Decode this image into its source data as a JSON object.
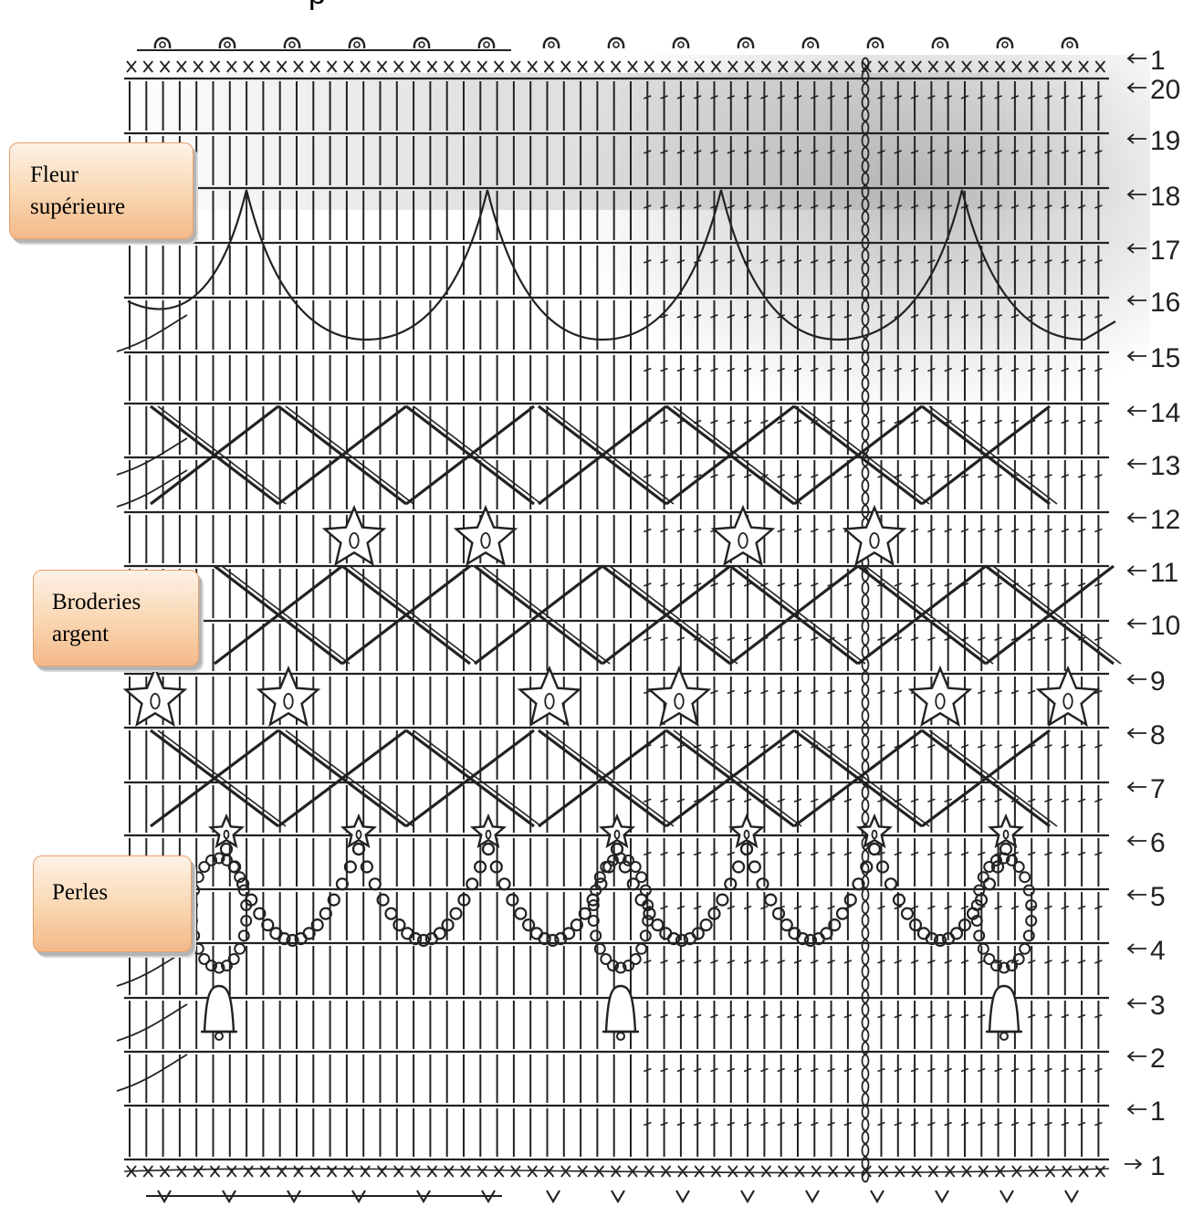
{
  "callouts": {
    "fleur": [
      "Fleur",
      "supérieure"
    ],
    "broderies": [
      "Broderies",
      "argent"
    ],
    "perles": [
      "Perles"
    ]
  },
  "top_fragment": "p",
  "row_labels": [
    "1",
    "20",
    "19",
    "18",
    "17",
    "16",
    "15",
    "14",
    "13",
    "12",
    "11",
    "10",
    "9",
    "8",
    "7",
    "6",
    "5",
    "4",
    "3",
    "2",
    "1",
    "1"
  ],
  "colors": {
    "ink": "#222222",
    "callout_fill": "#f9d6b0",
    "callout_border": "#e7a06a",
    "shading": "#9a9a9a"
  },
  "icons": [
    "chain-stitch-icon",
    "single-crochet-icon",
    "double-crochet-icon",
    "star-motif-icon",
    "bead-icon",
    "bell-icon",
    "arrow-icon"
  ]
}
